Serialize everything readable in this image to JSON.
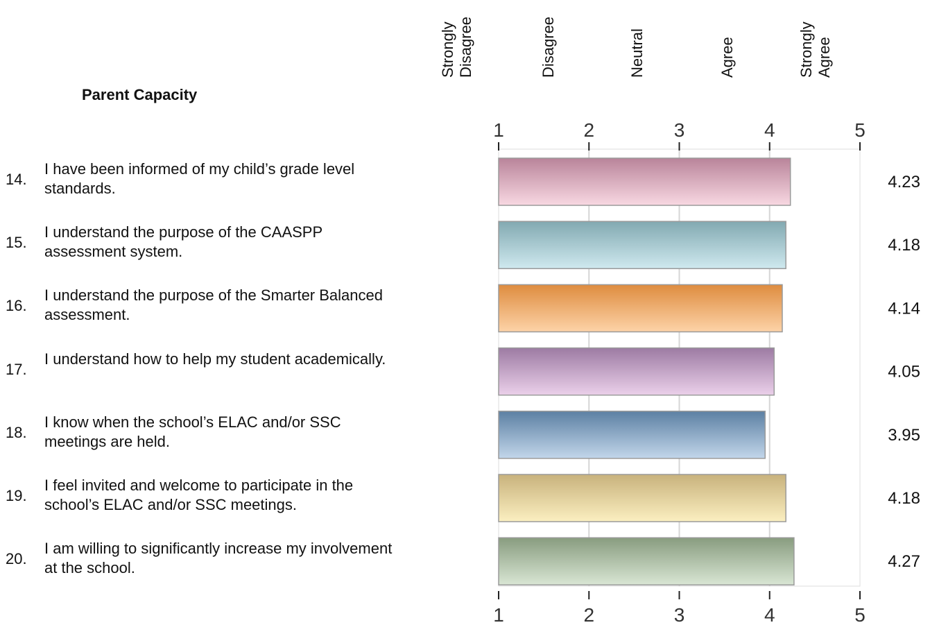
{
  "section_title": "Parent Capacity",
  "chart_data": {
    "type": "bar",
    "orientation": "horizontal",
    "xlim": [
      1,
      5
    ],
    "x_ticks": [
      "1",
      "2",
      "3",
      "4",
      "5"
    ],
    "scale_labels": [
      "Strongly Disagree",
      "Disagree",
      "Neutral",
      "Agree",
      "Strongly Agree"
    ],
    "grid": true,
    "categories": [
      "I have been informed of my child’s grade level standards.",
      "I understand the purpose of the CAASPP assessment system.",
      "I understand the purpose of the Smarter Balanced assessment.",
      "I understand how to help my student academically.",
      "I know when the school’s ELAC and/or SSC meetings are held.",
      "I feel invited and welcome to participate in the school’s ELAC and/or SSC meetings.",
      "I am willing to significantly increase my involvement at the school."
    ],
    "values": [
      4.23,
      4.18,
      4.14,
      4.05,
      3.95,
      4.18,
      4.27
    ],
    "value_labels": [
      "4.23",
      "4.18",
      "4.14",
      "4.05",
      "3.95",
      "4.18",
      "4.27"
    ],
    "colors": [
      [
        "#b9849a",
        "#f8d8e2"
      ],
      [
        "#82a9b1",
        "#cfe9ef"
      ],
      [
        "#de8c3f",
        "#fdd3a8"
      ],
      [
        "#9d7ba3",
        "#ebd0ea"
      ],
      [
        "#5c80a3",
        "#c2d6ea"
      ],
      [
        "#c8b27c",
        "#fbefc0"
      ],
      [
        "#889c7f",
        "#d9e6d4"
      ]
    ]
  },
  "questions": [
    {
      "num": "14.",
      "text": [
        "I have been informed of my child’s grade level",
        "standards."
      ]
    },
    {
      "num": "15.",
      "text": [
        "I understand the purpose of the CAASPP",
        "assessment system."
      ]
    },
    {
      "num": "16.",
      "text": [
        "I understand the purpose of the Smarter Balanced",
        "assessment."
      ]
    },
    {
      "num": "17.",
      "text": [
        "I understand how to help my student academically."
      ]
    },
    {
      "num": "18.",
      "text": [
        "I know when the school’s ELAC and/or SSC",
        "meetings are held."
      ]
    },
    {
      "num": "19.",
      "text": [
        "I feel invited and welcome to participate in the",
        "school’s ELAC and/or SSC meetings."
      ]
    },
    {
      "num": "20.",
      "text": [
        "I am willing to significantly increase my involvement",
        "at the school."
      ]
    }
  ]
}
